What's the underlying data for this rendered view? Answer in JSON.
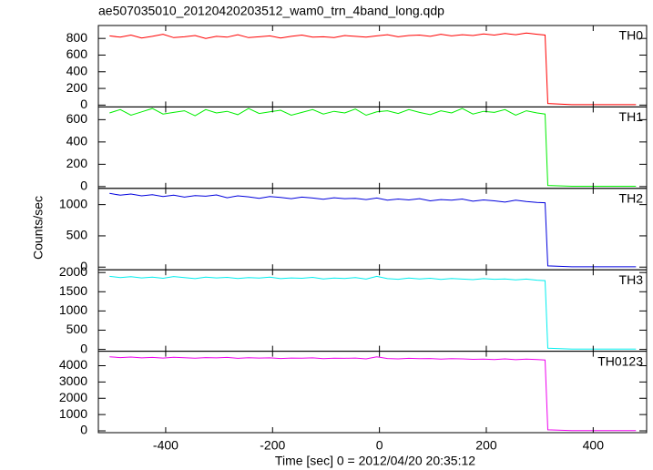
{
  "chart_data": {
    "type": "line",
    "title": "ae507035010_20120420203512_wam0_trn_4band_long.qdp",
    "x_label": "Time [sec] 0 = 2012/04/20 20:35:12",
    "y_label": "Counts/sec",
    "xlim": [
      -526,
      500
    ],
    "xticks": [
      -400,
      -200,
      0,
      200,
      400
    ],
    "x": [
      -505,
      -485,
      -465,
      -445,
      -425,
      -405,
      -385,
      -365,
      -345,
      -325,
      -305,
      -285,
      -265,
      -245,
      -225,
      -205,
      -185,
      -165,
      -145,
      -125,
      -105,
      -85,
      -65,
      -45,
      -25,
      -5,
      15,
      35,
      55,
      75,
      95,
      115,
      135,
      155,
      175,
      195,
      215,
      235,
      255,
      275,
      295,
      310,
      315,
      360,
      420,
      480
    ],
    "series": [
      {
        "name": "TH0",
        "color": "#ff0000",
        "ylim": [
          -22,
          955
        ],
        "yticks": [
          0,
          200,
          400,
          600,
          800
        ],
        "values": [
          830,
          815,
          840,
          805,
          825,
          850,
          810,
          820,
          835,
          800,
          825,
          815,
          845,
          810,
          820,
          830,
          805,
          825,
          840,
          815,
          820,
          810,
          835,
          825,
          815,
          830,
          845,
          820,
          835,
          840,
          825,
          850,
          830,
          845,
          835,
          855,
          840,
          860,
          845,
          865,
          850,
          840,
          20,
          5,
          5,
          5
        ]
      },
      {
        "name": "TH1",
        "color": "#00ee00",
        "ylim": [
          -16,
          714
        ],
        "yticks": [
          0,
          200,
          400,
          600
        ],
        "values": [
          660,
          690,
          640,
          670,
          700,
          650,
          665,
          680,
          635,
          690,
          660,
          675,
          645,
          700,
          655,
          670,
          685,
          640,
          665,
          690,
          650,
          675,
          660,
          695,
          640,
          670,
          680,
          655,
          690,
          665,
          645,
          680,
          660,
          700,
          650,
          675,
          665,
          690,
          640,
          680,
          660,
          650,
          10,
          3,
          3,
          3
        ]
      },
      {
        "name": "TH2",
        "color": "#0000dd",
        "ylim": [
          -43,
          1260
        ],
        "yticks": [
          0,
          500,
          1000
        ],
        "values": [
          1180,
          1150,
          1170,
          1140,
          1160,
          1130,
          1150,
          1120,
          1145,
          1135,
          1155,
          1110,
          1140,
          1125,
          1100,
          1130,
          1115,
          1095,
          1120,
          1105,
          1085,
          1110,
          1095,
          1100,
          1080,
          1105,
          1070,
          1090,
          1075,
          1095,
          1060,
          1080,
          1070,
          1090,
          1055,
          1075,
          1060,
          1040,
          1070,
          1050,
          1035,
          1030,
          20,
          5,
          5,
          5
        ]
      },
      {
        "name": "TH3",
        "color": "#00eeee",
        "ylim": [
          -48,
          2071
        ],
        "yticks": [
          0,
          500,
          1000,
          1500,
          2000
        ],
        "values": [
          1900,
          1870,
          1890,
          1860,
          1880,
          1850,
          1895,
          1870,
          1840,
          1880,
          1860,
          1875,
          1845,
          1870,
          1855,
          1880,
          1840,
          1860,
          1850,
          1875,
          1835,
          1855,
          1845,
          1870,
          1830,
          1900,
          1840,
          1825,
          1855,
          1835,
          1850,
          1820,
          1845,
          1830,
          1815,
          1840,
          1825,
          1835,
          1810,
          1830,
          1800,
          1790,
          30,
          10,
          10,
          10
        ]
      },
      {
        "name": "TH0123",
        "color": "#ee00ee",
        "ylim": [
          -111,
          4889
        ],
        "yticks": [
          0,
          1000,
          2000,
          3000,
          4000
        ],
        "values": [
          4550,
          4500,
          4530,
          4480,
          4510,
          4470,
          4520,
          4490,
          4460,
          4500,
          4480,
          4510,
          4450,
          4490,
          4470,
          4480,
          4440,
          4470,
          4460,
          4480,
          4430,
          4460,
          4450,
          4470,
          4420,
          4540,
          4440,
          4420,
          4450,
          4430,
          4440,
          4400,
          4430,
          4420,
          4390,
          4410,
          4380,
          4420,
          4370,
          4400,
          4380,
          4350,
          60,
          20,
          20,
          20
        ]
      }
    ]
  }
}
